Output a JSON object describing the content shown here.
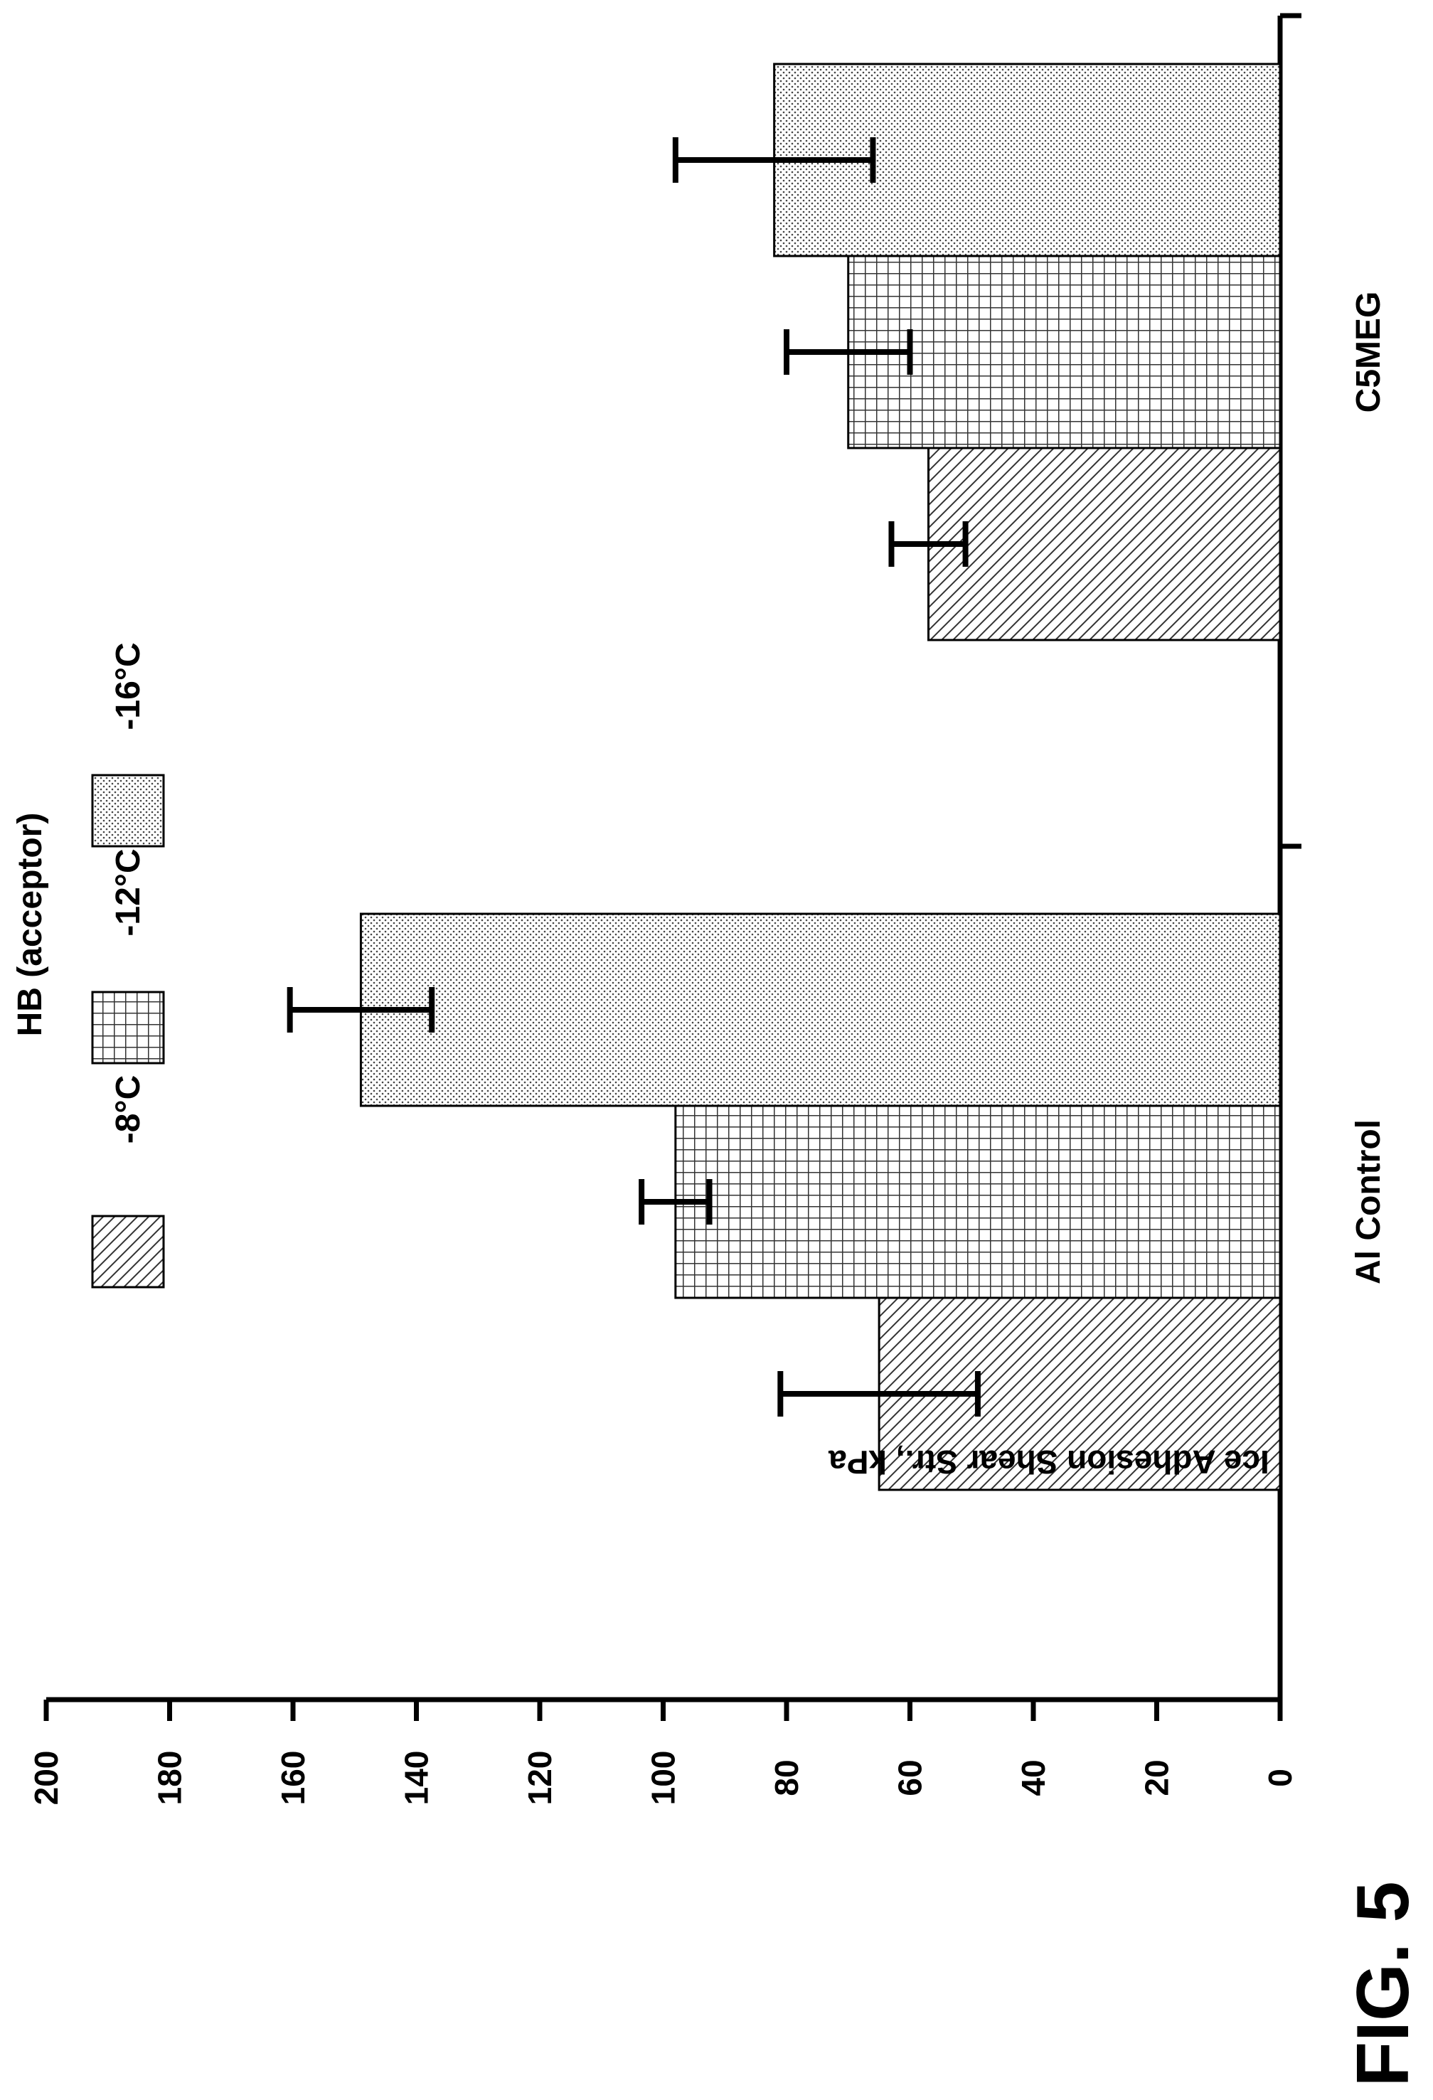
{
  "figure_label": "FIG. 5",
  "chart_data": {
    "type": "bar",
    "orientation": "rotated 90° (value axis along page top-to-left, rendered as vertical page layout)",
    "title": "",
    "ylabel": "Ice Adhesion Shear Str., kPa",
    "xlabel": "",
    "ylim": [
      0,
      200
    ],
    "y_ticks": [
      "0",
      "20",
      "40",
      "60",
      "80",
      "100",
      "120",
      "140",
      "160",
      "180",
      "200"
    ],
    "categories": [
      "Al Control",
      "C5MEG"
    ],
    "legend_title": "HB (acceptor)",
    "legend_position": "top-right",
    "series": [
      {
        "name": "-8°C",
        "pattern": "hatch-diagonal",
        "values": [
          65,
          57
        ],
        "errors": [
          16,
          6
        ]
      },
      {
        "name": "-12°C",
        "pattern": "grid",
        "values": [
          98,
          70
        ],
        "errors": [
          5.5,
          10
        ]
      },
      {
        "name": "-16°C",
        "pattern": "dots",
        "values": [
          149,
          82
        ],
        "errors": [
          11.5,
          16
        ]
      }
    ],
    "colors": {
      "stroke": "#000000",
      "fill": "#ffffff",
      "pattern": "#333333"
    }
  }
}
